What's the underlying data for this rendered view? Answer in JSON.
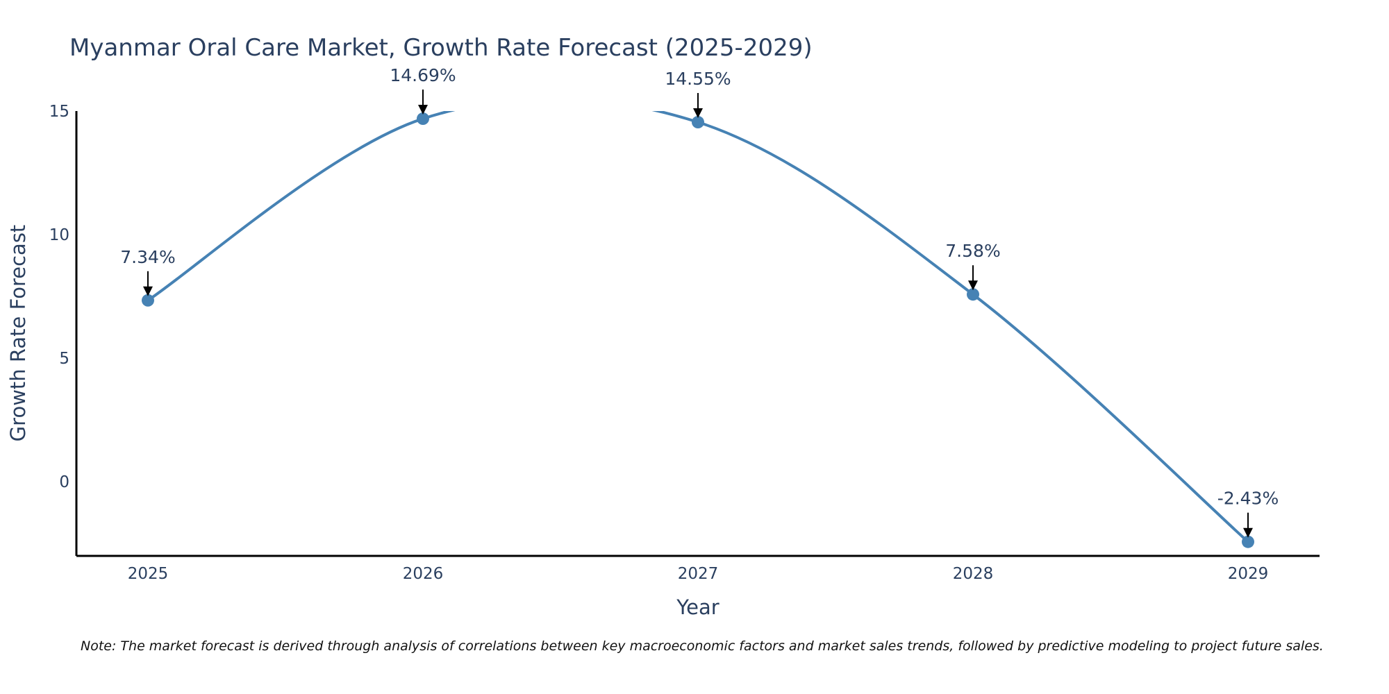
{
  "chart_data": {
    "type": "line",
    "title": "Myanmar Oral Care Market, Growth Rate Forecast (2025-2029)",
    "xlabel": "Year",
    "ylabel": "Growth Rate Forecast",
    "categories": [
      "2025",
      "2026",
      "2027",
      "2028",
      "2029"
    ],
    "series": [
      {
        "name": "Growth Rate Forecast",
        "values": [
          7.34,
          14.69,
          14.55,
          7.58,
          -2.43
        ],
        "labels": [
          "7.34%",
          "14.69%",
          "14.55%",
          "7.58%",
          "-2.43%"
        ]
      }
    ],
    "y_ticks": [
      0,
      5,
      10,
      15
    ],
    "ylim": [
      -3,
      15
    ],
    "line_shape": "spline",
    "colors": {
      "line": "#4682b4",
      "marker": "#4682b4",
      "axis": "#000000",
      "arrow": "#000000"
    }
  },
  "note": "Note: The market forecast is derived through analysis of correlations between key macroeconomic factors and market sales trends, followed by predictive modeling to project future sales."
}
